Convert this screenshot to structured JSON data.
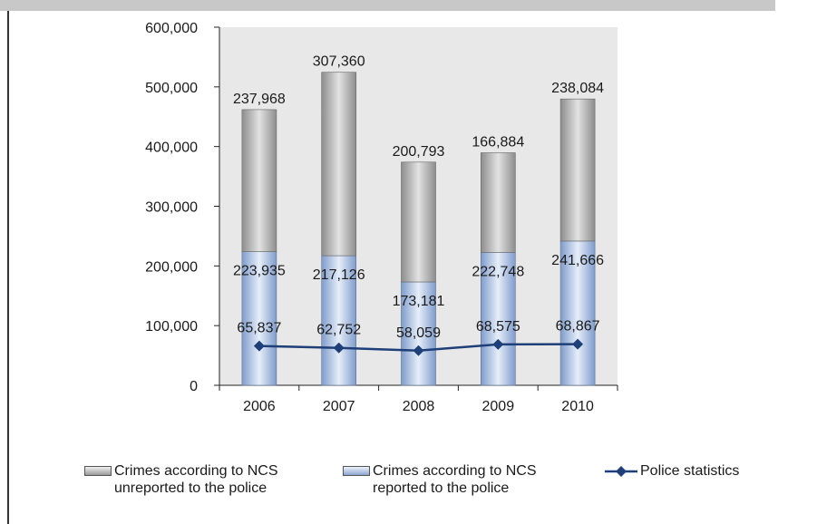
{
  "chart_data": {
    "type": "bar",
    "stacked": true,
    "categories": [
      "2006",
      "2007",
      "2008",
      "2009",
      "2010"
    ],
    "ylim": [
      0,
      600000
    ],
    "yticks": [
      0,
      100000,
      200000,
      300000,
      400000,
      500000,
      600000
    ],
    "ytick_labels": [
      "0",
      "100,000",
      "200,000",
      "300,000",
      "400,000",
      "500,000",
      "600,000"
    ],
    "grid": false,
    "legend_position": "bottom",
    "series": [
      {
        "name_lines": [
          "Crimes according to NCS",
          "reported to the police"
        ],
        "kind": "bar",
        "color": "#a9bee0",
        "values": [
          223935,
          217126,
          173181,
          222748,
          241666
        ],
        "labels": [
          "223,935",
          "217,126",
          "173,181",
          "222,748",
          "241,666"
        ]
      },
      {
        "name_lines": [
          "Crimes according to NCS",
          "unreported to the police"
        ],
        "kind": "bar",
        "color": "#b4b4b4",
        "values": [
          237968,
          307360,
          200793,
          166884,
          238084
        ],
        "labels": [
          "237,968",
          "307,360",
          "200,793",
          "166,884",
          "238,084"
        ]
      },
      {
        "name_lines": [
          "Police statistics"
        ],
        "kind": "line",
        "color": "#1f3f78",
        "values": [
          65837,
          62752,
          58059,
          68575,
          68867
        ],
        "labels": [
          "65,837",
          "62,752",
          "58,059",
          "68,575",
          "68,867"
        ]
      }
    ]
  },
  "colors": {
    "plot_background": "#e8e8e8",
    "axis": "#222222"
  }
}
